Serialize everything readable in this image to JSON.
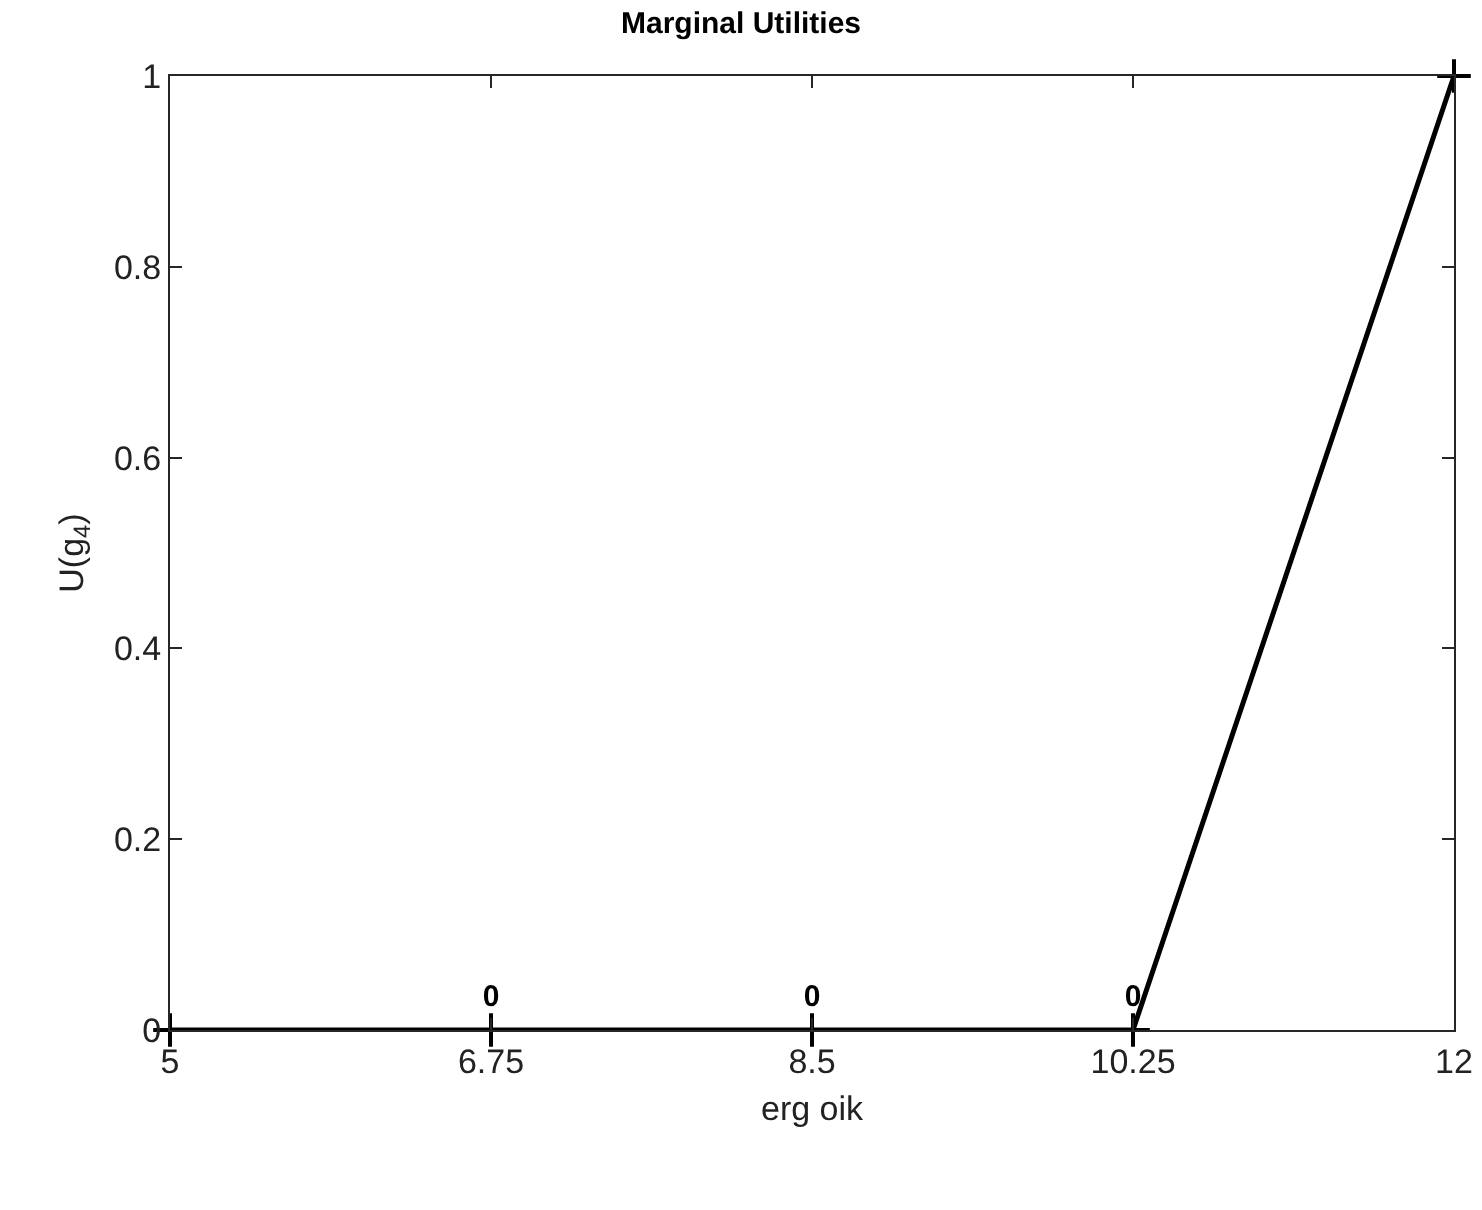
{
  "chart_data": {
    "type": "line",
    "title": "Marginal Utilities",
    "xlabel": "erg oik",
    "ylabel": "U(g$_{4}$)",
    "x": [
      5,
      6.75,
      8.5,
      10.25,
      12
    ],
    "series": [
      {
        "color": "#000000",
        "values": [
          0,
          0,
          0,
          0,
          1
        ],
        "value_labels": [
          null,
          "0",
          "0",
          "0",
          null
        ]
      }
    ],
    "xlim": [
      5,
      12
    ],
    "xticks": [
      5,
      6.75,
      8.5,
      10.25,
      12
    ],
    "ylim": [
      0,
      1
    ],
    "yticks": [
      0,
      0.2,
      0.4,
      0.6,
      0.8,
      1
    ],
    "marker": "cross",
    "line_style": "solid",
    "grid": false,
    "legend": false
  }
}
